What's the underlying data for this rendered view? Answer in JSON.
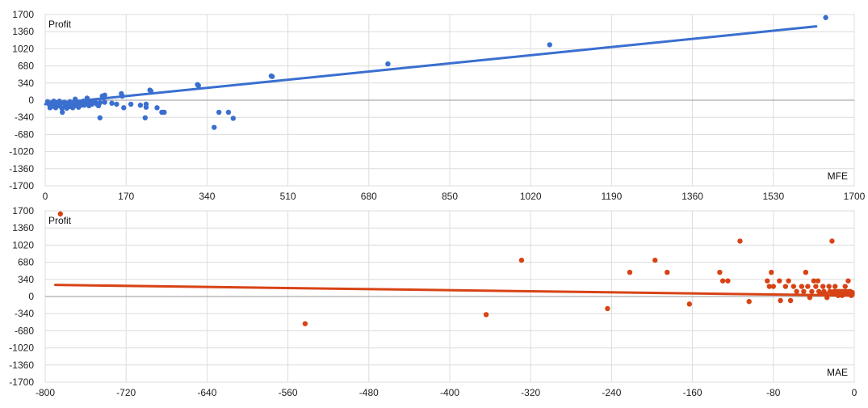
{
  "chart_data": [
    {
      "type": "scatter",
      "ylabel": "Profit",
      "xlabel": "MFE",
      "xlim": [
        0,
        1700
      ],
      "ylim": [
        -1700,
        1700
      ],
      "x_ticks": [
        0,
        170,
        340,
        510,
        680,
        850,
        1020,
        1190,
        1360,
        1530,
        1700
      ],
      "y_ticks": [
        1700,
        1360,
        1020,
        680,
        340,
        0,
        -340,
        -680,
        -1020,
        -1360,
        -1700
      ],
      "grid": true,
      "colors": {
        "points": "#3a6fd0",
        "trend": "#3a6fd0"
      },
      "trendline": {
        "x": [
          0,
          1620
        ],
        "y": [
          -80,
          1465
        ]
      },
      "points": [
        [
          5,
          -30
        ],
        [
          8,
          -80
        ],
        [
          10,
          -150
        ],
        [
          12,
          -60
        ],
        [
          15,
          -120
        ],
        [
          18,
          -20
        ],
        [
          20,
          -90
        ],
        [
          22,
          -150
        ],
        [
          25,
          -50
        ],
        [
          28,
          -110
        ],
        [
          30,
          -20
        ],
        [
          32,
          -70
        ],
        [
          35,
          -160
        ],
        [
          36,
          -240
        ],
        [
          40,
          -40
        ],
        [
          42,
          -100
        ],
        [
          45,
          -160
        ],
        [
          48,
          -70
        ],
        [
          50,
          -130
        ],
        [
          52,
          -30
        ],
        [
          55,
          -90
        ],
        [
          58,
          -150
        ],
        [
          60,
          -60
        ],
        [
          62,
          -110
        ],
        [
          63,
          20
        ],
        [
          65,
          -20
        ],
        [
          68,
          -80
        ],
        [
          70,
          -140
        ],
        [
          72,
          -40
        ],
        [
          75,
          -100
        ],
        [
          78,
          -60
        ],
        [
          80,
          -20
        ],
        [
          82,
          -100
        ],
        [
          85,
          -50
        ],
        [
          88,
          40
        ],
        [
          90,
          -70
        ],
        [
          92,
          -110
        ],
        [
          95,
          -30
        ],
        [
          98,
          -80
        ],
        [
          100,
          -60
        ],
        [
          105,
          -40
        ],
        [
          108,
          -70
        ],
        [
          110,
          -90
        ],
        [
          112,
          -110
        ],
        [
          115,
          -350
        ],
        [
          115,
          -50
        ],
        [
          120,
          80
        ],
        [
          122,
          40
        ],
        [
          125,
          -40
        ],
        [
          125,
          100
        ],
        [
          140,
          -60
        ],
        [
          150,
          -80
        ],
        [
          160,
          130
        ],
        [
          162,
          80
        ],
        [
          165,
          -150
        ],
        [
          180,
          -80
        ],
        [
          200,
          -100
        ],
        [
          210,
          -350
        ],
        [
          212,
          -80
        ],
        [
          212,
          -140
        ],
        [
          220,
          200
        ],
        [
          222,
          180
        ],
        [
          235,
          -150
        ],
        [
          245,
          -240
        ],
        [
          250,
          -240
        ],
        [
          320,
          310
        ],
        [
          322,
          290
        ],
        [
          355,
          -540
        ],
        [
          365,
          -240
        ],
        [
          385,
          -240
        ],
        [
          395,
          -360
        ],
        [
          475,
          480
        ],
        [
          477,
          470
        ],
        [
          720,
          720
        ],
        [
          1060,
          1100
        ],
        [
          1640,
          1640
        ]
      ]
    },
    {
      "type": "scatter",
      "ylabel": "Profit",
      "xlabel": "MAE",
      "xlim": [
        -800,
        0
      ],
      "ylim": [
        -1700,
        1700
      ],
      "x_ticks": [
        -800,
        -720,
        -640,
        -560,
        -480,
        -400,
        -320,
        -240,
        -160,
        -80,
        0
      ],
      "y_ticks": [
        1700,
        1360,
        1020,
        680,
        340,
        0,
        -340,
        -680,
        -1020,
        -1360,
        -1700
      ],
      "grid": true,
      "colors": {
        "points": "#d84315",
        "trend": "#d84315"
      },
      "trendline": {
        "x": [
          -790,
          -5
        ],
        "y": [
          230,
          20
        ]
      },
      "points": [
        [
          -785,
          1640
        ],
        [
          -543,
          -540
        ],
        [
          -364,
          -360
        ],
        [
          -329,
          720
        ],
        [
          -244,
          -240
        ],
        [
          -222,
          480
        ],
        [
          -197,
          720
        ],
        [
          -185,
          480
        ],
        [
          -163,
          -150
        ],
        [
          -133,
          480
        ],
        [
          -130,
          310
        ],
        [
          -125,
          310
        ],
        [
          -113,
          1100
        ],
        [
          -104,
          -100
        ],
        [
          -86,
          310
        ],
        [
          -84,
          200
        ],
        [
          -82,
          480
        ],
        [
          -80,
          200
        ],
        [
          -74,
          310
        ],
        [
          -73,
          -80
        ],
        [
          -68,
          200
        ],
        [
          -65,
          310
        ],
        [
          -63,
          -80
        ],
        [
          -60,
          200
        ],
        [
          -57,
          100
        ],
        [
          -52,
          200
        ],
        [
          -50,
          100
        ],
        [
          -48,
          480
        ],
        [
          -46,
          200
        ],
        [
          -44,
          -20
        ],
        [
          -42,
          100
        ],
        [
          -40,
          310
        ],
        [
          -38,
          200
        ],
        [
          -36,
          310
        ],
        [
          -35,
          100
        ],
        [
          -33,
          50
        ],
        [
          -31,
          200
        ],
        [
          -30,
          100
        ],
        [
          -28,
          50
        ],
        [
          -27,
          -20
        ],
        [
          -25,
          200
        ],
        [
          -24,
          100
        ],
        [
          -22,
          1100
        ],
        [
          -21,
          50
        ],
        [
          -20,
          100
        ],
        [
          -19,
          200
        ],
        [
          -18,
          50
        ],
        [
          -17,
          100
        ],
        [
          -16,
          20
        ],
        [
          -15,
          100
        ],
        [
          -14,
          50
        ],
        [
          -13,
          100
        ],
        [
          -12,
          20
        ],
        [
          -11,
          100
        ],
        [
          -10,
          50
        ],
        [
          -9,
          200
        ],
        [
          -8,
          100
        ],
        [
          -7,
          50
        ],
        [
          -6,
          310
        ],
        [
          -5,
          100
        ],
        [
          -5,
          50
        ],
        [
          -4,
          100
        ],
        [
          -3,
          20
        ],
        [
          -2,
          80
        ],
        [
          -2,
          40
        ]
      ]
    }
  ]
}
